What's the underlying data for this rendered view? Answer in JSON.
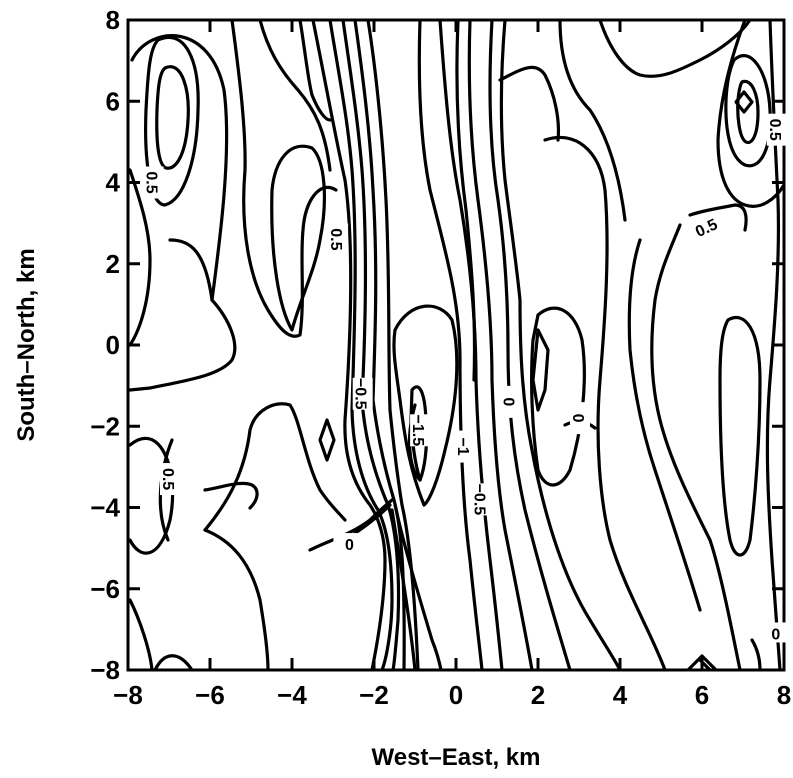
{
  "chart_data": {
    "type": "contour",
    "title": "",
    "xlabel": "West–East,  km",
    "ylabel": "South–North,  km",
    "xlim": [
      -8,
      8
    ],
    "ylim": [
      -8,
      8
    ],
    "xticks": [
      -8,
      -6,
      -4,
      -2,
      0,
      2,
      4,
      6,
      8
    ],
    "yticks": [
      -8,
      -6,
      -4,
      -2,
      0,
      2,
      4,
      6,
      8
    ],
    "xtick_labels": [
      "−8",
      "−6",
      "−4",
      "−2",
      "0",
      "2",
      "4",
      "6",
      "8"
    ],
    "ytick_labels": [
      "−8",
      "−6",
      "−4",
      "−2",
      "0",
      "2",
      "4",
      "6",
      "8"
    ],
    "grid": false,
    "contour_labels": [
      {
        "text": "0.5",
        "x": -7.4,
        "y": 4.0,
        "angle": 90
      },
      {
        "text": "0.5",
        "x": -2.9,
        "y": 2.6,
        "angle": 90
      },
      {
        "text": "0.5",
        "x": 6.1,
        "y": 2.9,
        "angle": -25
      },
      {
        "text": "0.5",
        "x": 7.8,
        "y": 5.3,
        "angle": 90
      },
      {
        "text": "0.5",
        "x": -7.0,
        "y": -3.3,
        "angle": 90
      },
      {
        "text": "−0.5",
        "x": -2.3,
        "y": -1.2,
        "angle": 90
      },
      {
        "text": "−1.5",
        "x": -0.9,
        "y": -2.1,
        "angle": 90
      },
      {
        "text": "−1",
        "x": 0.2,
        "y": -2.5,
        "angle": 90
      },
      {
        "text": "−0.5",
        "x": 0.6,
        "y": -3.8,
        "angle": 90
      },
      {
        "text": "0",
        "x": 1.3,
        "y": -1.4,
        "angle": 90
      },
      {
        "text": "0",
        "x": 3.0,
        "y": -1.8,
        "angle": 90
      },
      {
        "text": "0",
        "x": -2.6,
        "y": -4.9,
        "angle": 0
      },
      {
        "text": "0",
        "x": 7.8,
        "y": -7.1,
        "angle": 0
      }
    ]
  }
}
